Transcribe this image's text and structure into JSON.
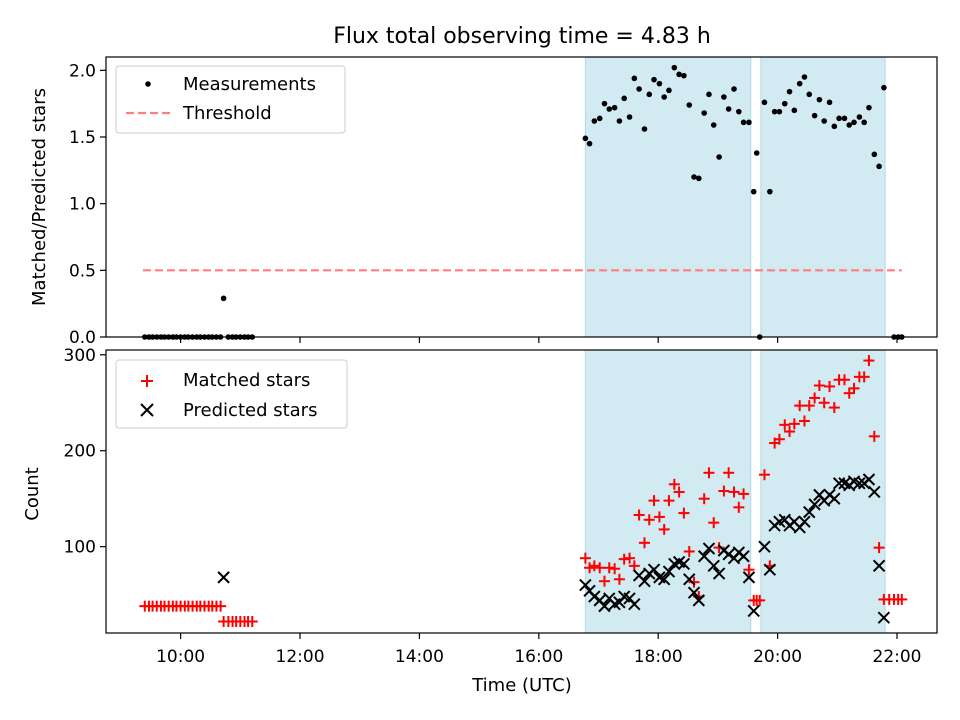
{
  "title": "Flux total observing time = 4.83 h",
  "xlabel": "Time (UTC)",
  "x_tick_labels": [
    "10:00",
    "12:00",
    "14:00",
    "16:00",
    "18:00",
    "20:00",
    "22:00"
  ],
  "x_tick_hours": [
    10,
    12,
    14,
    16,
    18,
    20,
    22
  ],
  "colors": {
    "shade": "#add8e6",
    "measurement": "#000000",
    "threshold": "#ff7f7f",
    "matched": "#ff0000",
    "predicted": "#000000"
  },
  "chart_data": [
    {
      "type": "scatter",
      "ylabel": "Matched/Predicted stars",
      "xlim": [
        8.75,
        22.67
      ],
      "ylim": [
        0,
        2.1
      ],
      "y_ticks": [
        0.0,
        0.5,
        1.0,
        1.5,
        2.0
      ],
      "y_tick_labels": [
        "0.0",
        "0.5",
        "1.0",
        "1.5",
        "2.0"
      ],
      "grid": false,
      "legend_position": "upper-left",
      "legend": [
        {
          "label": "Measurements",
          "marker": "dot"
        },
        {
          "label": "Threshold",
          "marker": "dashed-line"
        }
      ],
      "shaded_intervals": [
        [
          16.78,
          19.55
        ],
        [
          19.72,
          21.8
        ]
      ],
      "threshold": {
        "y": 0.5,
        "x_range": [
          9.37,
          22.08
        ]
      },
      "series": [
        {
          "name": "Measurements",
          "marker": "dot",
          "points": [
            [
              9.4,
              0.0
            ],
            [
              9.47,
              0.0
            ],
            [
              9.53,
              0.0
            ],
            [
              9.6,
              0.0
            ],
            [
              9.67,
              0.0
            ],
            [
              9.73,
              0.0
            ],
            [
              9.8,
              0.0
            ],
            [
              9.87,
              0.0
            ],
            [
              9.93,
              0.0
            ],
            [
              10.0,
              0.0
            ],
            [
              10.07,
              0.0
            ],
            [
              10.13,
              0.0
            ],
            [
              10.2,
              0.0
            ],
            [
              10.27,
              0.0
            ],
            [
              10.33,
              0.0
            ],
            [
              10.4,
              0.0
            ],
            [
              10.47,
              0.0
            ],
            [
              10.53,
              0.0
            ],
            [
              10.6,
              0.0
            ],
            [
              10.67,
              0.0
            ],
            [
              10.72,
              0.29
            ],
            [
              10.8,
              0.0
            ],
            [
              10.87,
              0.0
            ],
            [
              10.93,
              0.0
            ],
            [
              11.0,
              0.0
            ],
            [
              11.07,
              0.0
            ],
            [
              11.13,
              0.0
            ],
            [
              11.2,
              0.0
            ],
            [
              16.78,
              1.49
            ],
            [
              16.85,
              1.45
            ],
            [
              16.93,
              1.62
            ],
            [
              17.02,
              1.64
            ],
            [
              17.1,
              1.75
            ],
            [
              17.18,
              1.71
            ],
            [
              17.27,
              1.72
            ],
            [
              17.35,
              1.62
            ],
            [
              17.43,
              1.79
            ],
            [
              17.52,
              1.65
            ],
            [
              17.6,
              1.94
            ],
            [
              17.68,
              1.86
            ],
            [
              17.77,
              1.56
            ],
            [
              17.85,
              1.82
            ],
            [
              17.93,
              1.93
            ],
            [
              18.02,
              1.9
            ],
            [
              18.1,
              1.8
            ],
            [
              18.18,
              1.85
            ],
            [
              18.27,
              2.02
            ],
            [
              18.35,
              1.97
            ],
            [
              18.43,
              1.96
            ],
            [
              18.52,
              1.74
            ],
            [
              18.6,
              1.2
            ],
            [
              18.68,
              1.19
            ],
            [
              18.77,
              1.68
            ],
            [
              18.85,
              1.82
            ],
            [
              18.93,
              1.59
            ],
            [
              19.02,
              1.35
            ],
            [
              19.1,
              1.8
            ],
            [
              19.18,
              1.71
            ],
            [
              19.27,
              1.86
            ],
            [
              19.35,
              1.69
            ],
            [
              19.43,
              1.61
            ],
            [
              19.52,
              1.61
            ],
            [
              19.6,
              1.09
            ],
            [
              19.65,
              1.38
            ],
            [
              19.7,
              0.0
            ],
            [
              19.78,
              1.76
            ],
            [
              19.87,
              1.09
            ],
            [
              19.95,
              1.69
            ],
            [
              20.03,
              1.69
            ],
            [
              20.12,
              1.75
            ],
            [
              20.2,
              1.84
            ],
            [
              20.28,
              1.7
            ],
            [
              20.37,
              1.9
            ],
            [
              20.45,
              1.95
            ],
            [
              20.53,
              1.82
            ],
            [
              20.62,
              1.66
            ],
            [
              20.7,
              1.78
            ],
            [
              20.78,
              1.62
            ],
            [
              20.87,
              1.76
            ],
            [
              20.95,
              1.58
            ],
            [
              21.03,
              1.64
            ],
            [
              21.12,
              1.64
            ],
            [
              21.2,
              1.59
            ],
            [
              21.28,
              1.61
            ],
            [
              21.37,
              1.65
            ],
            [
              21.45,
              1.61
            ],
            [
              21.53,
              1.72
            ],
            [
              21.62,
              1.37
            ],
            [
              21.7,
              1.28
            ],
            [
              21.78,
              1.87
            ],
            [
              21.95,
              0.0
            ],
            [
              22.02,
              0.0
            ],
            [
              22.08,
              0.0
            ]
          ]
        }
      ]
    },
    {
      "type": "scatter",
      "ylabel": "Count",
      "xlim": [
        8.75,
        22.67
      ],
      "ylim": [
        10,
        305
      ],
      "y_ticks": [
        100,
        200,
        300
      ],
      "y_tick_labels": [
        "100",
        "200",
        "300"
      ],
      "grid": false,
      "legend_position": "upper-left",
      "legend": [
        {
          "label": "Matched stars",
          "marker": "plus"
        },
        {
          "label": "Predicted stars",
          "marker": "x"
        }
      ],
      "shaded_intervals": [
        [
          16.78,
          19.55
        ],
        [
          19.72,
          21.8
        ]
      ],
      "series": [
        {
          "name": "Matched stars",
          "marker": "plus",
          "points": [
            [
              9.4,
              38
            ],
            [
              9.47,
              38
            ],
            [
              9.53,
              38
            ],
            [
              9.6,
              38
            ],
            [
              9.67,
              38
            ],
            [
              9.73,
              38
            ],
            [
              9.8,
              38
            ],
            [
              9.87,
              38
            ],
            [
              9.93,
              38
            ],
            [
              10.0,
              38
            ],
            [
              10.07,
              38
            ],
            [
              10.13,
              38
            ],
            [
              10.2,
              38
            ],
            [
              10.27,
              38
            ],
            [
              10.33,
              38
            ],
            [
              10.4,
              38
            ],
            [
              10.47,
              38
            ],
            [
              10.53,
              38
            ],
            [
              10.6,
              38
            ],
            [
              10.67,
              38
            ],
            [
              10.72,
              22
            ],
            [
              10.8,
              22
            ],
            [
              10.87,
              22
            ],
            [
              10.93,
              22
            ],
            [
              11.0,
              22
            ],
            [
              11.07,
              22
            ],
            [
              11.13,
              22
            ],
            [
              11.2,
              22
            ],
            [
              16.78,
              88
            ],
            [
              16.85,
              78
            ],
            [
              16.93,
              80
            ],
            [
              17.02,
              78
            ],
            [
              17.1,
              64
            ],
            [
              17.18,
              78
            ],
            [
              17.27,
              77
            ],
            [
              17.35,
              66
            ],
            [
              17.43,
              87
            ],
            [
              17.52,
              88
            ],
            [
              17.6,
              80
            ],
            [
              17.68,
              133
            ],
            [
              17.77,
              104
            ],
            [
              17.85,
              128
            ],
            [
              17.93,
              148
            ],
            [
              18.02,
              131
            ],
            [
              18.1,
              118
            ],
            [
              18.18,
              148
            ],
            [
              18.27,
              165
            ],
            [
              18.35,
              157
            ],
            [
              18.43,
              135
            ],
            [
              18.52,
              95
            ],
            [
              18.6,
              63
            ],
            [
              18.68,
              48
            ],
            [
              18.77,
              150
            ],
            [
              18.85,
              177
            ],
            [
              18.93,
              125
            ],
            [
              19.02,
              99
            ],
            [
              19.1,
              158
            ],
            [
              19.18,
              177
            ],
            [
              19.27,
              157
            ],
            [
              19.35,
              141
            ],
            [
              19.43,
              155
            ],
            [
              19.52,
              76
            ],
            [
              19.6,
              44
            ],
            [
              19.65,
              44
            ],
            [
              19.7,
              44
            ],
            [
              19.78,
              175
            ],
            [
              19.87,
              80
            ],
            [
              19.95,
              208
            ],
            [
              20.03,
              212
            ],
            [
              20.12,
              227
            ],
            [
              20.2,
              220
            ],
            [
              20.28,
              228
            ],
            [
              20.37,
              247
            ],
            [
              20.45,
              231
            ],
            [
              20.53,
              247
            ],
            [
              20.62,
              255
            ],
            [
              20.7,
              268
            ],
            [
              20.78,
              250
            ],
            [
              20.87,
              267
            ],
            [
              20.95,
              245
            ],
            [
              21.03,
              274
            ],
            [
              21.12,
              274
            ],
            [
              21.2,
              260
            ],
            [
              21.28,
              265
            ],
            [
              21.37,
              277
            ],
            [
              21.45,
              277
            ],
            [
              21.53,
              294
            ],
            [
              21.62,
              215
            ],
            [
              21.7,
              99
            ],
            [
              21.78,
              45
            ],
            [
              21.87,
              45
            ],
            [
              21.95,
              45
            ],
            [
              22.02,
              45
            ],
            [
              22.08,
              45
            ]
          ]
        },
        {
          "name": "Predicted stars",
          "marker": "x",
          "points": [
            [
              10.72,
              68
            ],
            [
              16.78,
              60
            ],
            [
              16.85,
              54
            ],
            [
              16.93,
              48
            ],
            [
              17.02,
              44
            ],
            [
              17.1,
              38
            ],
            [
              17.18,
              46
            ],
            [
              17.27,
              40
            ],
            [
              17.35,
              42
            ],
            [
              17.43,
              48
            ],
            [
              17.52,
              46
            ],
            [
              17.6,
              40
            ],
            [
              17.68,
              70
            ],
            [
              17.77,
              64
            ],
            [
              17.85,
              72
            ],
            [
              17.93,
              76
            ],
            [
              18.02,
              68
            ],
            [
              18.1,
              66
            ],
            [
              18.18,
              74
            ],
            [
              18.27,
              82
            ],
            [
              18.35,
              84
            ],
            [
              18.43,
              82
            ],
            [
              18.52,
              66
            ],
            [
              18.6,
              52
            ],
            [
              18.68,
              44
            ],
            [
              18.77,
              90
            ],
            [
              18.85,
              98
            ],
            [
              18.93,
              80
            ],
            [
              19.02,
              72
            ],
            [
              19.1,
              96
            ],
            [
              19.18,
              92
            ],
            [
              19.27,
              88
            ],
            [
              19.35,
              94
            ],
            [
              19.43,
              90
            ],
            [
              19.52,
              68
            ],
            [
              19.6,
              33
            ],
            [
              19.78,
              100
            ],
            [
              19.87,
              76
            ],
            [
              19.95,
              122
            ],
            [
              20.03,
              126
            ],
            [
              20.12,
              128
            ],
            [
              20.2,
              122
            ],
            [
              20.28,
              126
            ],
            [
              20.37,
              120
            ],
            [
              20.45,
              126
            ],
            [
              20.53,
              136
            ],
            [
              20.62,
              144
            ],
            [
              20.7,
              154
            ],
            [
              20.78,
              148
            ],
            [
              20.87,
              154
            ],
            [
              20.95,
              150
            ],
            [
              21.03,
              166
            ],
            [
              21.12,
              166
            ],
            [
              21.2,
              164
            ],
            [
              21.28,
              168
            ],
            [
              21.37,
              166
            ],
            [
              21.45,
              166
            ],
            [
              21.53,
              170
            ],
            [
              21.62,
              157
            ],
            [
              21.7,
              80
            ],
            [
              21.78,
              26
            ]
          ]
        }
      ]
    }
  ]
}
